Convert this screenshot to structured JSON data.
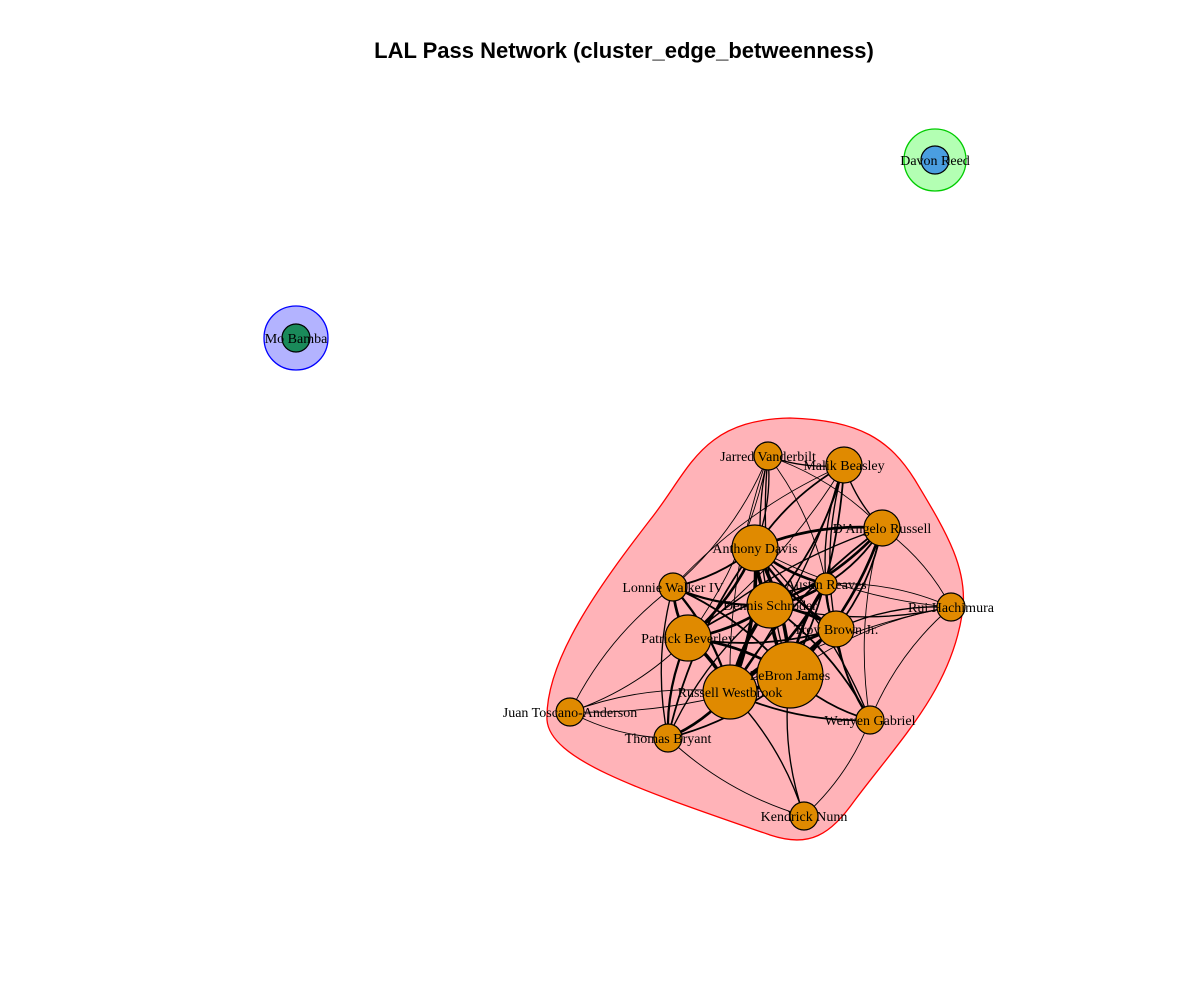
{
  "title": "LAL Pass Network (cluster_edge_betweenness)",
  "colors": {
    "main_cluster_fill": "#ffb3b8",
    "main_cluster_stroke": "#ff0000",
    "mo_cluster_fill": "#b3b3ff",
    "mo_cluster_stroke": "#0000ff",
    "davon_cluster_fill": "#b3ffb3",
    "davon_cluster_stroke": "#00cc00",
    "main_node": "#e08a00",
    "mo_node": "#1a8a5a",
    "davon_node": "#4a9ee0"
  },
  "clusters": [
    {
      "id": "main",
      "members": [
        "LeBron James",
        "Russell Westbrook",
        "Anthony Davis",
        "Dennis Schroder",
        "Austin Reaves",
        "Troy Brown Jr.",
        "Patrick Beverley",
        "Lonnie Walker IV",
        "D'Angelo Russell",
        "Malik Beasley",
        "Jarred Vanderbilt",
        "Rui Hachimura",
        "Wenyen Gabriel",
        "Thomas Bryant",
        "Juan Toscano-Anderson",
        "Kendrick Nunn"
      ]
    },
    {
      "id": "mo",
      "members": [
        "Mo Bamba"
      ]
    },
    {
      "id": "davon",
      "members": [
        "Davon Reed"
      ]
    }
  ],
  "nodes": [
    {
      "id": "lebron",
      "label": "LeBron James",
      "cluster": "main",
      "size": "xl"
    },
    {
      "id": "westbrook",
      "label": "Russell Westbrook",
      "cluster": "main",
      "size": "l"
    },
    {
      "id": "ad",
      "label": "Anthony Davis",
      "cluster": "main",
      "size": "m"
    },
    {
      "id": "schroder",
      "label": "Dennis Schroder",
      "cluster": "main",
      "size": "m"
    },
    {
      "id": "beverley",
      "label": "Patrick Beverley",
      "cluster": "main",
      "size": "m"
    },
    {
      "id": "troy",
      "label": "Troy Brown Jr.",
      "cluster": "main",
      "size": "s"
    },
    {
      "id": "dangelo",
      "label": "D'Angelo Russell",
      "cluster": "main",
      "size": "s"
    },
    {
      "id": "malik",
      "label": "Malik Beasley",
      "cluster": "main",
      "size": "s"
    },
    {
      "id": "jarred",
      "label": "Jarred Vanderbilt",
      "cluster": "main",
      "size": "xs"
    },
    {
      "id": "lonnie",
      "label": "Lonnie Walker IV",
      "cluster": "main",
      "size": "xs"
    },
    {
      "id": "reaves",
      "label": "Austin Reaves",
      "cluster": "main",
      "size": "xxs"
    },
    {
      "id": "rui",
      "label": "Rui Hachimura",
      "cluster": "main",
      "size": "xs"
    },
    {
      "id": "wenyen",
      "label": "Wenyen Gabriel",
      "cluster": "main",
      "size": "xs"
    },
    {
      "id": "thomas",
      "label": "Thomas Bryant",
      "cluster": "main",
      "size": "xs"
    },
    {
      "id": "juan",
      "label": "Juan Toscano-Anderson",
      "cluster": "main",
      "size": "xs"
    },
    {
      "id": "nunn",
      "label": "Kendrick Nunn",
      "cluster": "main",
      "size": "xs"
    },
    {
      "id": "mo",
      "label": "Mo Bamba",
      "cluster": "mo",
      "size": "xs"
    },
    {
      "id": "davon",
      "label": "Davon Reed",
      "cluster": "davon",
      "size": "xs"
    }
  ],
  "edges": [
    [
      "lebron",
      "westbrook",
      4
    ],
    [
      "lebron",
      "ad",
      4
    ],
    [
      "lebron",
      "schroder",
      4
    ],
    [
      "lebron",
      "beverley",
      3
    ],
    [
      "lebron",
      "troy",
      3
    ],
    [
      "lebron",
      "dangelo",
      3
    ],
    [
      "lebron",
      "reaves",
      3
    ],
    [
      "lebron",
      "malik",
      2
    ],
    [
      "lebron",
      "jarred",
      1.5
    ],
    [
      "lebron",
      "lonnie",
      2
    ],
    [
      "lebron",
      "rui",
      1
    ],
    [
      "lebron",
      "wenyen",
      2
    ],
    [
      "lebron",
      "thomas",
      2
    ],
    [
      "lebron",
      "nunn",
      1.5
    ],
    [
      "lebron",
      "juan",
      1
    ],
    [
      "westbrook",
      "ad",
      4
    ],
    [
      "westbrook",
      "schroder",
      4
    ],
    [
      "westbrook",
      "beverley",
      4
    ],
    [
      "westbrook",
      "troy",
      3
    ],
    [
      "westbrook",
      "reaves",
      3
    ],
    [
      "westbrook",
      "dangelo",
      2
    ],
    [
      "westbrook",
      "lonnie",
      2.5
    ],
    [
      "westbrook",
      "thomas",
      3
    ],
    [
      "westbrook",
      "wenyen",
      2
    ],
    [
      "westbrook",
      "nunn",
      1.5
    ],
    [
      "westbrook",
      "juan",
      1
    ],
    [
      "westbrook",
      "jarred",
      1
    ],
    [
      "westbrook",
      "malik",
      1.5
    ],
    [
      "westbrook",
      "rui",
      1
    ],
    [
      "ad",
      "schroder",
      4
    ],
    [
      "ad",
      "beverley",
      3
    ],
    [
      "ad",
      "reaves",
      3
    ],
    [
      "ad",
      "dangelo",
      3
    ],
    [
      "ad",
      "troy",
      2.5
    ],
    [
      "ad",
      "lonnie",
      2
    ],
    [
      "ad",
      "jarred",
      1.5
    ],
    [
      "ad",
      "malik",
      2
    ],
    [
      "ad",
      "rui",
      1
    ],
    [
      "ad",
      "wenyen",
      1.5
    ],
    [
      "ad",
      "thomas",
      2
    ],
    [
      "schroder",
      "beverley",
      3
    ],
    [
      "schroder",
      "reaves",
      3
    ],
    [
      "schroder",
      "troy",
      3
    ],
    [
      "schroder",
      "dangelo",
      3
    ],
    [
      "schroder",
      "lonnie",
      2.5
    ],
    [
      "schroder",
      "malik",
      2
    ],
    [
      "schroder",
      "jarred",
      1.5
    ],
    [
      "schroder",
      "rui",
      1.5
    ],
    [
      "schroder",
      "wenyen",
      2
    ],
    [
      "schroder",
      "thomas",
      1.5
    ],
    [
      "beverley",
      "reaves",
      2
    ],
    [
      "beverley",
      "troy",
      2
    ],
    [
      "beverley",
      "lonnie",
      3
    ],
    [
      "beverley",
      "thomas",
      2.5
    ],
    [
      "beverley",
      "juan",
      1
    ],
    [
      "beverley",
      "jarred",
      1
    ],
    [
      "beverley",
      "dangelo",
      1.5
    ],
    [
      "beverley",
      "malik",
      1
    ],
    [
      "troy",
      "reaves",
      2.5
    ],
    [
      "troy",
      "dangelo",
      2
    ],
    [
      "troy",
      "malik",
      1.5
    ],
    [
      "troy",
      "wenyen",
      2
    ],
    [
      "troy",
      "rui",
      1.5
    ],
    [
      "reaves",
      "dangelo",
      2
    ],
    [
      "reaves",
      "malik",
      1.5
    ],
    [
      "reaves",
      "jarred",
      1
    ],
    [
      "reaves",
      "rui",
      1
    ],
    [
      "reaves",
      "wenyen",
      1.5
    ],
    [
      "dangelo",
      "malik",
      1.5
    ],
    [
      "dangelo",
      "jarred",
      1
    ],
    [
      "dangelo",
      "rui",
      1
    ],
    [
      "dangelo",
      "wenyen",
      1
    ],
    [
      "malik",
      "jarred",
      1.5
    ],
    [
      "lonnie",
      "jarred",
      1
    ],
    [
      "lonnie",
      "malik",
      1
    ],
    [
      "lonnie",
      "thomas",
      1.5
    ],
    [
      "thomas",
      "juan",
      1
    ],
    [
      "nunn",
      "wenyen",
      1
    ],
    [
      "nunn",
      "thomas",
      1
    ],
    [
      "rui",
      "wenyen",
      1
    ],
    [
      "juan",
      "lonnie",
      1
    ]
  ]
}
